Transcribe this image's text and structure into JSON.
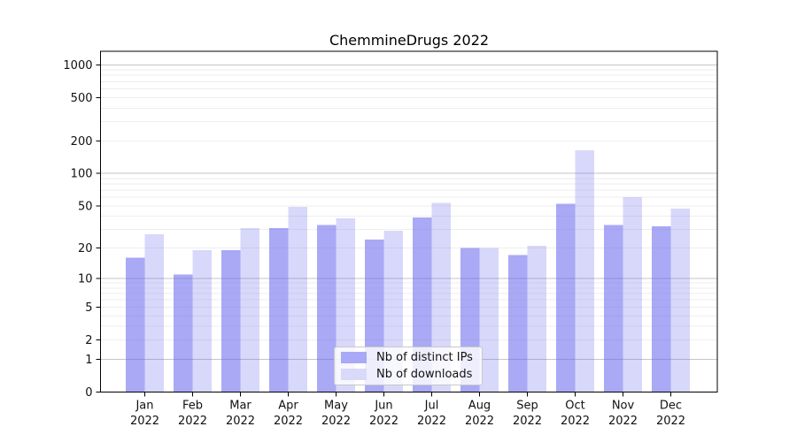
{
  "figure": {
    "title": "ChemmineDrugs 2022"
  },
  "colors": {
    "background": "#ffffff",
    "spine": "#000000",
    "grid_major": "#c6c6c6",
    "grid_minor": "#eeeeee",
    "text": "#111111",
    "bar_base": "#6565ee",
    "ips_bar_on_white": "#a9a9f7",
    "downloads_bar_on_white": "#d9d9fa"
  },
  "chart_data": {
    "type": "bar",
    "title": "ChemmineDrugs 2022",
    "categories": [
      "Jan 2022",
      "Feb 2022",
      "Mar 2022",
      "Apr 2022",
      "May 2022",
      "Jun 2022",
      "Jul 2022",
      "Aug 2022",
      "Sep 2022",
      "Oct 2022",
      "Nov 2022",
      "Dec 2022"
    ],
    "series": [
      {
        "name": "Nb of distinct IPs",
        "fill": "#6565ee",
        "fill_opacity": 0.56,
        "swatch_hex": "#a9a9f7",
        "values": [
          16,
          11,
          19,
          31,
          33,
          24,
          39,
          20,
          17,
          52,
          33,
          32
        ]
      },
      {
        "name": "Nb of downloads",
        "fill": "#6565ee",
        "fill_opacity": 0.25,
        "swatch_hex": "#d9d9fa",
        "values": [
          27,
          19,
          31,
          49,
          38,
          29,
          53,
          20,
          21,
          164,
          60,
          47
        ]
      }
    ],
    "xlabel": "",
    "ylabel": "",
    "y_scale": "log10(value+1)",
    "y_ticks": [
      0,
      1,
      2,
      5,
      10,
      20,
      50,
      100,
      200,
      500,
      1000
    ],
    "ylim": [
      0,
      1330
    ],
    "grid": true,
    "legend_position": "inside-bottom-center"
  }
}
